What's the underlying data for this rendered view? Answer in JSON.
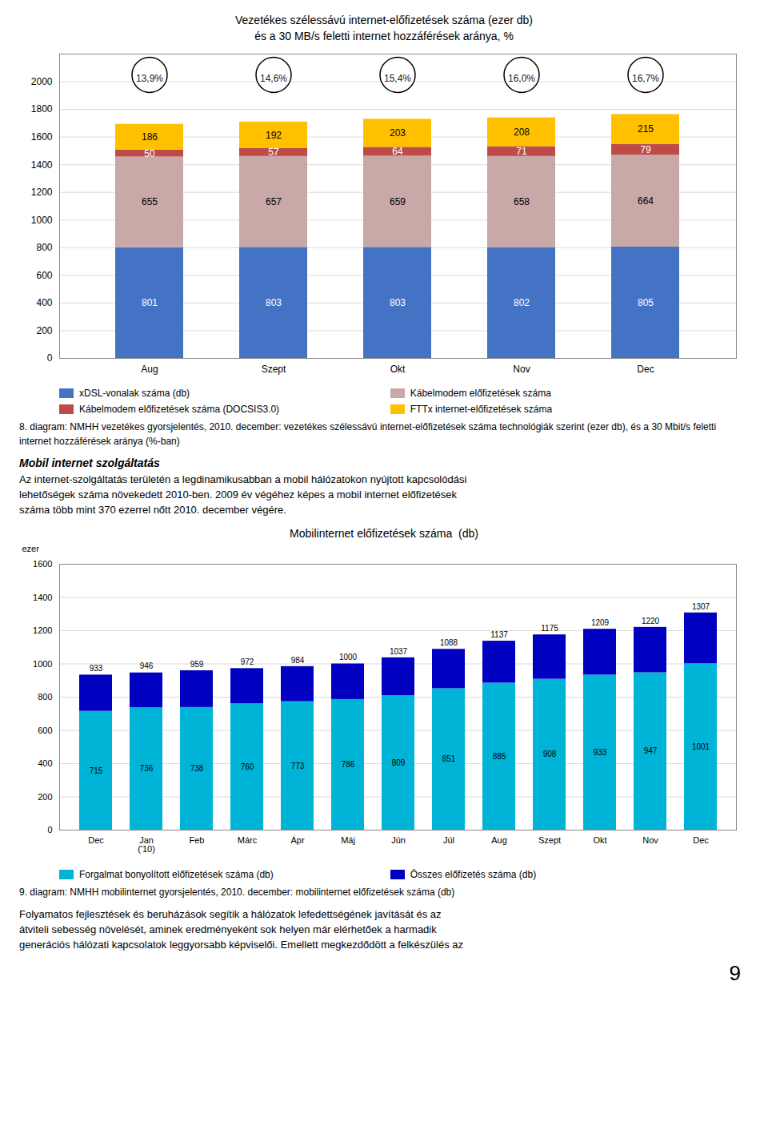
{
  "chart_data": [
    {
      "type": "bar",
      "stacked": true,
      "title": "Vezetékes szélessávú internet-előfizetések száma (ezer db)\nés a 30 MB/s feletti internet hozzáférések aránya, %",
      "categories": [
        "Aug",
        "Szept",
        "Okt",
        "Nov",
        "Dec"
      ],
      "series": [
        {
          "name": "xDSL-vonalak száma (db)",
          "color": "#4472C4",
          "values": [
            801,
            803,
            803,
            802,
            805
          ]
        },
        {
          "name": "Kábelmodem előfizetések száma",
          "color": "#C9A8A8",
          "values": [
            655,
            657,
            659,
            658,
            664
          ]
        },
        {
          "name": "Kábelmodem előfizetések száma (DOCSIS3.0)",
          "color": "#BE4B48",
          "values": [
            50,
            57,
            64,
            71,
            79
          ]
        },
        {
          "name": "FTTx internet-előfizetések száma",
          "color": "#FFC000",
          "values": [
            186,
            192,
            203,
            208,
            215
          ]
        }
      ],
      "annotations": [
        "13,9%",
        "14,6%",
        "15,4%",
        "16,0%",
        "16,7%"
      ],
      "data_labels": true,
      "ylim": [
        0,
        2200
      ],
      "yticks": [
        0,
        200,
        400,
        600,
        800,
        1000,
        1200,
        1400,
        1600,
        1800,
        2000
      ],
      "grid": true,
      "caption": "8. diagram: NMHH vezetékes gyorsjelentés, 2010. december: vezetékes szélessávú internet-előfizetések száma technológiák szerint (ezer db), és a 30 Mbit/s feletti internet hozzáférések aránya (%-ban)"
    },
    {
      "type": "bar",
      "stacked": true,
      "title": "Mobilinternet előfizetések száma  (db)",
      "ylabel": "ezer",
      "categories": [
        "Dec",
        "Jan\n('10)",
        "Feb",
        "Márc",
        "Ápr",
        "Máj",
        "Jún",
        "Júl",
        "Aug",
        "Szept",
        "Okt",
        "Nov",
        "Dec"
      ],
      "series": [
        {
          "name": "Forgalmat bonyolított előfizetések száma (db)",
          "color": "#00B4D8",
          "data_labels": true,
          "values": [
            715,
            736,
            738,
            760,
            773,
            786,
            809,
            851,
            885,
            908,
            933,
            947,
            1001
          ]
        },
        {
          "name": "Összes előfizetés száma (db)",
          "color": "#0000C0",
          "values": [
            218,
            210,
            221,
            212,
            211,
            214,
            228,
            237,
            252,
            267,
            276,
            273,
            306
          ]
        }
      ],
      "totals": [
        933,
        946,
        959,
        972,
        984,
        1000,
        1037,
        1088,
        1137,
        1175,
        1209,
        1220,
        1307
      ],
      "ylim": [
        0,
        1600
      ],
      "yticks": [
        0,
        200,
        400,
        600,
        800,
        1000,
        1200,
        1400,
        1600
      ],
      "grid": true,
      "caption": "9. diagram: NMHH mobilinternet gyorsjelentés, 2010. december: mobilinternet előfizetések száma (db)"
    }
  ],
  "section_title": "Mobil internet szolgáltatás",
  "section_text": [
    "Az internet-szolgáltatás területén a legdinamikusabban a mobil hálózatokon nyújtott kapcsolódási",
    "lehetőségek száma növekedett 2010-ben. 2009 év végéhez képes a mobil internet előfizetések",
    "száma több mint 370 ezerrel nőtt 2010. december végére."
  ],
  "footer_text": [
    "Folyamatos fejlesztések és beruházások segítik a hálózatok lefedettségének javítását és az",
    "átviteli sebesség növelését, aminek eredményeként sok helyen már elérhetőek a harmadik",
    "generációs hálózati kapcsolatok leggyorsabb képviselői. Emellett megkezdődött a felkészülés az"
  ],
  "page_number": "9"
}
